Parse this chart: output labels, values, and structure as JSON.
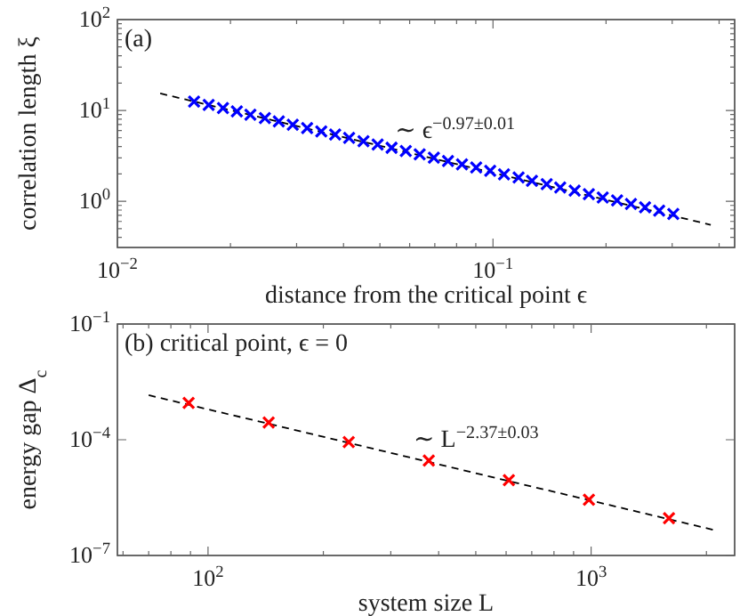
{
  "chart_data": [
    {
      "type": "scatter",
      "title": "(a)",
      "xlabel": "distance from the critical point ϵ",
      "ylabel": "correlation length ξ",
      "log": "xy",
      "marker": "cross",
      "xlim": [
        0.01,
        0.44
      ],
      "ylim": [
        0.31,
        100
      ],
      "xticks": [
        {
          "value": 0.01,
          "label": "10$^{−2}$"
        },
        {
          "value": 0.02,
          "label": null
        },
        {
          "value": 0.03,
          "label": null
        },
        {
          "value": 0.04,
          "label": null
        },
        {
          "value": 0.05,
          "label": null
        },
        {
          "value": 0.06,
          "label": null
        },
        {
          "value": 0.07,
          "label": null
        },
        {
          "value": 0.08,
          "label": null
        },
        {
          "value": 0.09,
          "label": null
        },
        {
          "value": 0.1,
          "label": "10$^{−1}$"
        },
        {
          "value": 0.2,
          "label": null
        },
        {
          "value": 0.3,
          "label": null
        },
        {
          "value": 0.4,
          "label": null
        }
      ],
      "yticks": [
        {
          "value": 0.4,
          "label": null
        },
        {
          "value": 0.5,
          "label": null
        },
        {
          "value": 0.6,
          "label": null
        },
        {
          "value": 0.7,
          "label": null
        },
        {
          "value": 0.8,
          "label": null
        },
        {
          "value": 0.9,
          "label": null
        },
        {
          "value": 1,
          "label": "10$^{0}$"
        },
        {
          "value": 2,
          "label": null
        },
        {
          "value": 3,
          "label": null
        },
        {
          "value": 4,
          "label": null
        },
        {
          "value": 5,
          "label": null
        },
        {
          "value": 6,
          "label": null
        },
        {
          "value": 7,
          "label": null
        },
        {
          "value": 8,
          "label": null
        },
        {
          "value": 9,
          "label": null
        },
        {
          "value": 10,
          "label": "10$^{1}$"
        },
        {
          "value": 20,
          "label": null
        },
        {
          "value": 30,
          "label": null
        },
        {
          "value": 40,
          "label": null
        },
        {
          "value": 50,
          "label": null
        },
        {
          "value": 60,
          "label": null
        },
        {
          "value": 70,
          "label": null
        },
        {
          "value": 80,
          "label": null
        },
        {
          "value": 90,
          "label": null
        },
        {
          "value": 100,
          "label": "10$^{2}$"
        }
      ],
      "annotations": [
        "∼ ϵ$^{−0.97±0.01}$"
      ],
      "series": [
        {
          "type": "line",
          "color": "#000000",
          "line_style": "dashed",
          "marker": "none",
          "x": [
            0.013,
            0.38
          ],
          "values": [
            15.4,
            0.55
          ]
        },
        {
          "color": "#0000ff",
          "x": [
            0.016,
            0.0175,
            0.0191,
            0.0208,
            0.0226,
            0.0247,
            0.0269,
            0.0293,
            0.032,
            0.0349,
            0.038,
            0.0414,
            0.0452,
            0.0493,
            0.0537,
            0.0586,
            0.0638,
            0.0696,
            0.0759,
            0.0827,
            0.0902,
            0.0983,
            0.107,
            0.117,
            0.127,
            0.139,
            0.151,
            0.165,
            0.18,
            0.196,
            0.214,
            0.233,
            0.254,
            0.277,
            0.302
          ],
          "values": [
            12.5,
            11.5,
            10.6,
            9.75,
            8.96,
            8.24,
            7.58,
            6.97,
            6.41,
            5.89,
            5.42,
            4.98,
            4.58,
            4.21,
            3.88,
            3.57,
            3.28,
            3.02,
            2.77,
            2.55,
            2.35,
            2.16,
            1.98,
            1.83,
            1.68,
            1.54,
            1.42,
            1.31,
            1.2,
            1.1,
            1.02,
            0.934,
            0.859,
            0.79,
            0.726
          ]
        }
      ]
    },
    {
      "type": "scatter",
      "title": "(b) critical point, ϵ = 0",
      "xlabel": "system size L",
      "ylabel": "energy gap Δ$_{c}$",
      "log": "xy",
      "marker": "cross",
      "xlim": [
        58,
        2370
      ],
      "ylim": [
        1e-07,
        0.1
      ],
      "xticks": [
        {
          "value": 60,
          "label": null
        },
        {
          "value": 70,
          "label": null
        },
        {
          "value": 80,
          "label": null
        },
        {
          "value": 90,
          "label": null
        },
        {
          "value": 100,
          "label": "10$^{2}$"
        },
        {
          "value": 200,
          "label": null
        },
        {
          "value": 300,
          "label": null
        },
        {
          "value": 400,
          "label": null
        },
        {
          "value": 500,
          "label": null
        },
        {
          "value": 600,
          "label": null
        },
        {
          "value": 700,
          "label": null
        },
        {
          "value": 800,
          "label": null
        },
        {
          "value": 900,
          "label": null
        },
        {
          "value": 1000,
          "label": "10$^{3}$"
        },
        {
          "value": 2000,
          "label": null
        }
      ],
      "yticks": [
        {
          "value": 1e-07,
          "label": "10$^{−7}$"
        },
        {
          "value": 0.0001,
          "label": "10$^{−4}$"
        },
        {
          "value": 0.1,
          "label": "10$^{−1}$"
        }
      ],
      "annotations": [
        "∼ L$^{−2.37±0.03}$"
      ],
      "series": [
        {
          "type": "line",
          "color": "#000000",
          "line_style": "dashed",
          "marker": "none",
          "x": [
            70,
            2090
          ],
          "values": [
            0.00143,
            4.6e-07
          ]
        },
        {
          "color": "#ff0000",
          "x": [
            89,
            144,
            233,
            377,
            610,
            987,
            1597
          ],
          "values": [
            0.0009,
            0.00028,
            8.7e-05,
            2.9e-05,
            9e-06,
            2.8e-06,
            9.3e-07
          ]
        }
      ]
    }
  ]
}
